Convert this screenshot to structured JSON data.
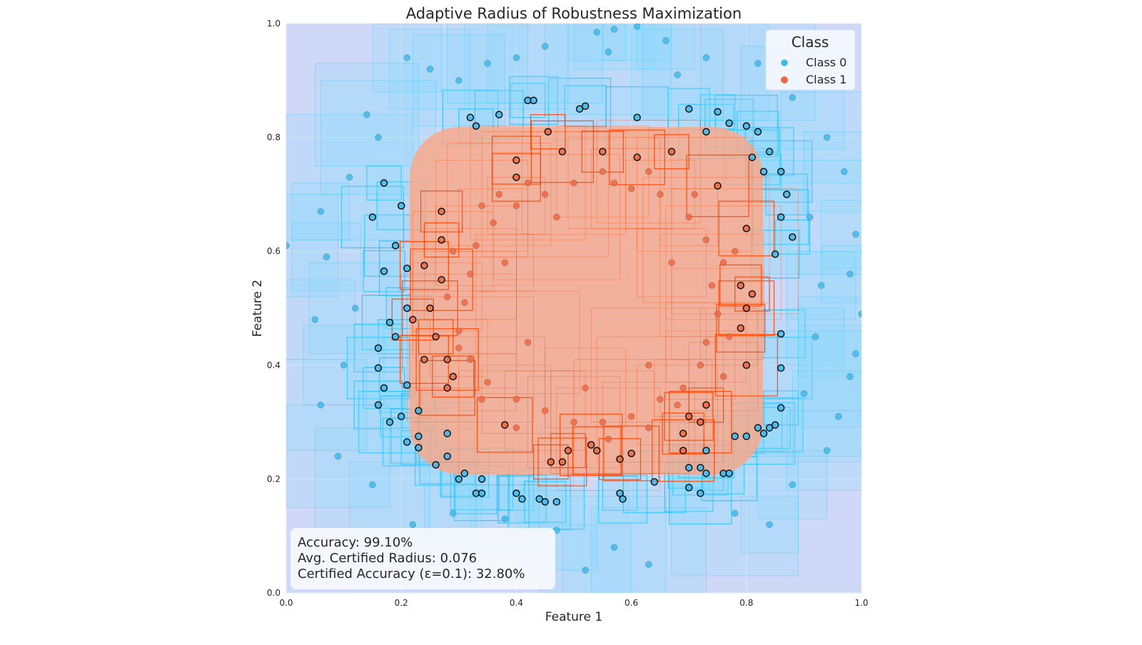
{
  "chart_data": {
    "type": "scatter",
    "title": "Adaptive Radius of Robustness Maximization",
    "xlabel": "Feature 1",
    "ylabel": "Feature 2",
    "xlim": [
      0.0,
      1.0
    ],
    "ylim": [
      0.0,
      1.0
    ],
    "xticks": [
      "0.0",
      "0.2",
      "0.4",
      "0.6",
      "0.8",
      "1.0"
    ],
    "yticks": [
      "0.0",
      "0.2",
      "0.4",
      "0.6",
      "0.8",
      "1.0"
    ],
    "grid": true,
    "legend": {
      "title": "Class",
      "placement": "top-right",
      "entries": [
        "Class 0",
        "Class 1"
      ]
    },
    "colors": {
      "class0": "#3fb8ea",
      "class1": "#f0683f",
      "box0": "#19c2ff",
      "box1": "#ff4500",
      "background": "#cfd9f7",
      "region1": "#f7a98c"
    },
    "annotation": {
      "lines": [
        "Accuracy: 99.10%",
        "Avg. Certified Radius: 0.076",
        "Certified Accuracy (ε=0.1): 32.80%"
      ],
      "placement": "bottom-left"
    },
    "series": [
      {
        "name": "Class 0",
        "points": [
          [
            0.42,
            0.865,
            1
          ],
          [
            0.43,
            0.865,
            1
          ],
          [
            0.51,
            0.85,
            1
          ],
          [
            0.52,
            0.855,
            1
          ],
          [
            0.32,
            0.835,
            1
          ],
          [
            0.33,
            0.82,
            1
          ],
          [
            0.37,
            0.84,
            1
          ],
          [
            0.61,
            0.835,
            1
          ],
          [
            0.7,
            0.85,
            1
          ],
          [
            0.73,
            0.81,
            1
          ],
          [
            0.75,
            0.845,
            1
          ],
          [
            0.77,
            0.825,
            1
          ],
          [
            0.8,
            0.82,
            1
          ],
          [
            0.82,
            0.81,
            1
          ],
          [
            0.81,
            0.765,
            1
          ],
          [
            0.83,
            0.74,
            1
          ],
          [
            0.84,
            0.775,
            1
          ],
          [
            0.86,
            0.74,
            1
          ],
          [
            0.87,
            0.7,
            1
          ],
          [
            0.86,
            0.66,
            1
          ],
          [
            0.88,
            0.625,
            1
          ],
          [
            0.85,
            0.595,
            1
          ],
          [
            0.19,
            0.61,
            1
          ],
          [
            0.17,
            0.565,
            1
          ],
          [
            0.21,
            0.57,
            1
          ],
          [
            0.17,
            0.72,
            1
          ],
          [
            0.2,
            0.68,
            1
          ],
          [
            0.15,
            0.66,
            1
          ],
          [
            0.21,
            0.5,
            1
          ],
          [
            0.18,
            0.475,
            1
          ],
          [
            0.19,
            0.45,
            1
          ],
          [
            0.16,
            0.43,
            1
          ],
          [
            0.16,
            0.395,
            1
          ],
          [
            0.17,
            0.36,
            1
          ],
          [
            0.21,
            0.365,
            1
          ],
          [
            0.23,
            0.32,
            1
          ],
          [
            0.16,
            0.33,
            1
          ],
          [
            0.18,
            0.3,
            1
          ],
          [
            0.2,
            0.31,
            1
          ],
          [
            0.23,
            0.275,
            1
          ],
          [
            0.23,
            0.255,
            1
          ],
          [
            0.21,
            0.265,
            1
          ],
          [
            0.28,
            0.28,
            1
          ],
          [
            0.26,
            0.225,
            1
          ],
          [
            0.28,
            0.24,
            1
          ],
          [
            0.3,
            0.2,
            1
          ],
          [
            0.31,
            0.21,
            1
          ],
          [
            0.34,
            0.2,
            1
          ],
          [
            0.33,
            0.175,
            1
          ],
          [
            0.34,
            0.175,
            1
          ],
          [
            0.4,
            0.175,
            1
          ],
          [
            0.41,
            0.165,
            1
          ],
          [
            0.44,
            0.165,
            1
          ],
          [
            0.45,
            0.16,
            1
          ],
          [
            0.47,
            0.16,
            1
          ],
          [
            0.58,
            0.175,
            1
          ],
          [
            0.585,
            0.165,
            1
          ],
          [
            0.64,
            0.195,
            1
          ],
          [
            0.7,
            0.22,
            1
          ],
          [
            0.72,
            0.22,
            1
          ],
          [
            0.73,
            0.21,
            1
          ],
          [
            0.7,
            0.185,
            1
          ],
          [
            0.72,
            0.175,
            1
          ],
          [
            0.76,
            0.21,
            1
          ],
          [
            0.77,
            0.21,
            1
          ],
          [
            0.8,
            0.275,
            1
          ],
          [
            0.82,
            0.29,
            1
          ],
          [
            0.83,
            0.28,
            1
          ],
          [
            0.84,
            0.29,
            1
          ],
          [
            0.85,
            0.295,
            1
          ],
          [
            0.86,
            0.325,
            1
          ],
          [
            0.86,
            0.455,
            1
          ],
          [
            0.86,
            0.395,
            1
          ],
          [
            0.78,
            0.275,
            1
          ],
          [
            0.73,
            0.25,
            1
          ],
          [
            0.57,
            0.99,
            0
          ],
          [
            0.61,
            0.995,
            0
          ],
          [
            0.54,
            0.985,
            0
          ],
          [
            0.56,
            0.95,
            0
          ],
          [
            0.45,
            0.96,
            0
          ],
          [
            0.4,
            0.94,
            0
          ],
          [
            0.3,
            0.9,
            0
          ],
          [
            0.25,
            0.92,
            0
          ],
          [
            0.21,
            0.94,
            0
          ],
          [
            0.66,
            0.97,
            0
          ],
          [
            0.73,
            0.94,
            0
          ],
          [
            0.82,
            0.93,
            0
          ],
          [
            0.88,
            0.87,
            0
          ],
          [
            0.94,
            0.8,
            0
          ],
          [
            0.97,
            0.74,
            0
          ],
          [
            0.99,
            0.63,
            0
          ],
          [
            0.98,
            0.56,
            0
          ],
          [
            1.0,
            0.49,
            0
          ],
          [
            0.99,
            0.42,
            0
          ],
          [
            0.98,
            0.38,
            0
          ],
          [
            0.96,
            0.31,
            0
          ],
          [
            0.94,
            0.25,
            0
          ],
          [
            0.88,
            0.19,
            0
          ],
          [
            0.84,
            0.12,
            0
          ],
          [
            0.78,
            0.14,
            0
          ],
          [
            0.63,
            0.05,
            0
          ],
          [
            0.57,
            0.08,
            0
          ],
          [
            0.52,
            0.04,
            0
          ],
          [
            0.47,
            0.11,
            0
          ],
          [
            0.38,
            0.13,
            0
          ],
          [
            0.29,
            0.14,
            0
          ],
          [
            0.22,
            0.12,
            0
          ],
          [
            0.15,
            0.19,
            0
          ],
          [
            0.09,
            0.24,
            0
          ],
          [
            0.06,
            0.33,
            0
          ],
          [
            0.05,
            0.48,
            0
          ],
          [
            0.07,
            0.59,
            0
          ],
          [
            0.06,
            0.67,
            0
          ],
          [
            0.11,
            0.73,
            0
          ],
          [
            0.16,
            0.8,
            0
          ],
          [
            0.0,
            0.61,
            0
          ],
          [
            0.12,
            0.5,
            0
          ],
          [
            0.1,
            0.4,
            0
          ],
          [
            0.93,
            0.54,
            0
          ],
          [
            0.92,
            0.45,
            0
          ],
          [
            0.9,
            0.35,
            0
          ],
          [
            0.91,
            0.66,
            0
          ],
          [
            0.14,
            0.84,
            0
          ],
          [
            0.68,
            0.91,
            0
          ],
          [
            0.35,
            0.93,
            0
          ]
        ]
      },
      {
        "name": "Class 1",
        "points": [
          [
            0.455,
            0.81,
            1
          ],
          [
            0.4,
            0.76,
            1
          ],
          [
            0.48,
            0.775,
            1
          ],
          [
            0.55,
            0.775,
            1
          ],
          [
            0.61,
            0.765,
            1
          ],
          [
            0.67,
            0.775,
            1
          ],
          [
            0.4,
            0.73,
            1
          ],
          [
            0.75,
            0.715,
            1
          ],
          [
            0.27,
            0.67,
            1
          ],
          [
            0.8,
            0.64,
            1
          ],
          [
            0.27,
            0.62,
            1
          ],
          [
            0.24,
            0.575,
            1
          ],
          [
            0.27,
            0.55,
            1
          ],
          [
            0.79,
            0.54,
            1
          ],
          [
            0.8,
            0.5,
            1
          ],
          [
            0.81,
            0.525,
            1
          ],
          [
            0.79,
            0.465,
            1
          ],
          [
            0.8,
            0.4,
            1
          ],
          [
            0.22,
            0.48,
            1
          ],
          [
            0.25,
            0.5,
            1
          ],
          [
            0.26,
            0.45,
            1
          ],
          [
            0.24,
            0.41,
            1
          ],
          [
            0.28,
            0.41,
            1
          ],
          [
            0.29,
            0.38,
            1
          ],
          [
            0.28,
            0.36,
            1
          ],
          [
            0.73,
            0.33,
            1
          ],
          [
            0.7,
            0.31,
            1
          ],
          [
            0.72,
            0.3,
            1
          ],
          [
            0.69,
            0.28,
            1
          ],
          [
            0.38,
            0.295,
            1
          ],
          [
            0.49,
            0.25,
            1
          ],
          [
            0.54,
            0.25,
            1
          ],
          [
            0.53,
            0.26,
            1
          ],
          [
            0.58,
            0.235,
            1
          ],
          [
            0.6,
            0.245,
            1
          ],
          [
            0.46,
            0.23,
            1
          ],
          [
            0.48,
            0.23,
            1
          ],
          [
            0.69,
            0.25,
            1
          ],
          [
            0.5,
            0.72,
            0
          ],
          [
            0.55,
            0.74,
            0
          ],
          [
            0.6,
            0.71,
            0
          ],
          [
            0.65,
            0.7,
            0
          ],
          [
            0.7,
            0.66,
            0
          ],
          [
            0.73,
            0.62,
            0
          ],
          [
            0.76,
            0.58,
            0
          ],
          [
            0.74,
            0.54,
            0
          ],
          [
            0.75,
            0.49,
            0
          ],
          [
            0.73,
            0.44,
            0
          ],
          [
            0.72,
            0.4,
            0
          ],
          [
            0.69,
            0.36,
            0
          ],
          [
            0.65,
            0.34,
            0
          ],
          [
            0.6,
            0.31,
            0
          ],
          [
            0.55,
            0.3,
            0
          ],
          [
            0.5,
            0.3,
            0
          ],
          [
            0.45,
            0.32,
            0
          ],
          [
            0.4,
            0.34,
            0
          ],
          [
            0.35,
            0.37,
            0
          ],
          [
            0.32,
            0.41,
            0
          ],
          [
            0.3,
            0.46,
            0
          ],
          [
            0.31,
            0.51,
            0
          ],
          [
            0.32,
            0.56,
            0
          ],
          [
            0.33,
            0.61,
            0
          ],
          [
            0.36,
            0.65,
            0
          ],
          [
            0.4,
            0.68,
            0
          ],
          [
            0.45,
            0.7,
            0
          ],
          [
            0.42,
            0.72,
            0
          ],
          [
            0.37,
            0.7,
            0
          ],
          [
            0.34,
            0.68,
            0
          ],
          [
            0.29,
            0.6,
            0
          ],
          [
            0.28,
            0.52,
            0
          ],
          [
            0.3,
            0.43,
            0
          ],
          [
            0.34,
            0.34,
            0
          ],
          [
            0.4,
            0.29,
            0
          ],
          [
            0.56,
            0.27,
            0
          ],
          [
            0.63,
            0.29,
            0
          ],
          [
            0.68,
            0.33,
            0
          ],
          [
            0.76,
            0.38,
            0
          ],
          [
            0.77,
            0.45,
            0
          ],
          [
            0.78,
            0.6,
            0
          ],
          [
            0.71,
            0.7,
            0
          ],
          [
            0.63,
            0.74,
            0
          ],
          [
            0.57,
            0.72,
            0
          ],
          [
            0.52,
            0.36,
            0
          ],
          [
            0.67,
            0.58,
            0
          ],
          [
            0.38,
            0.58,
            0
          ],
          [
            0.47,
            0.66,
            0
          ],
          [
            0.63,
            0.4,
            0
          ],
          [
            0.42,
            0.44,
            0
          ]
        ]
      }
    ]
  }
}
